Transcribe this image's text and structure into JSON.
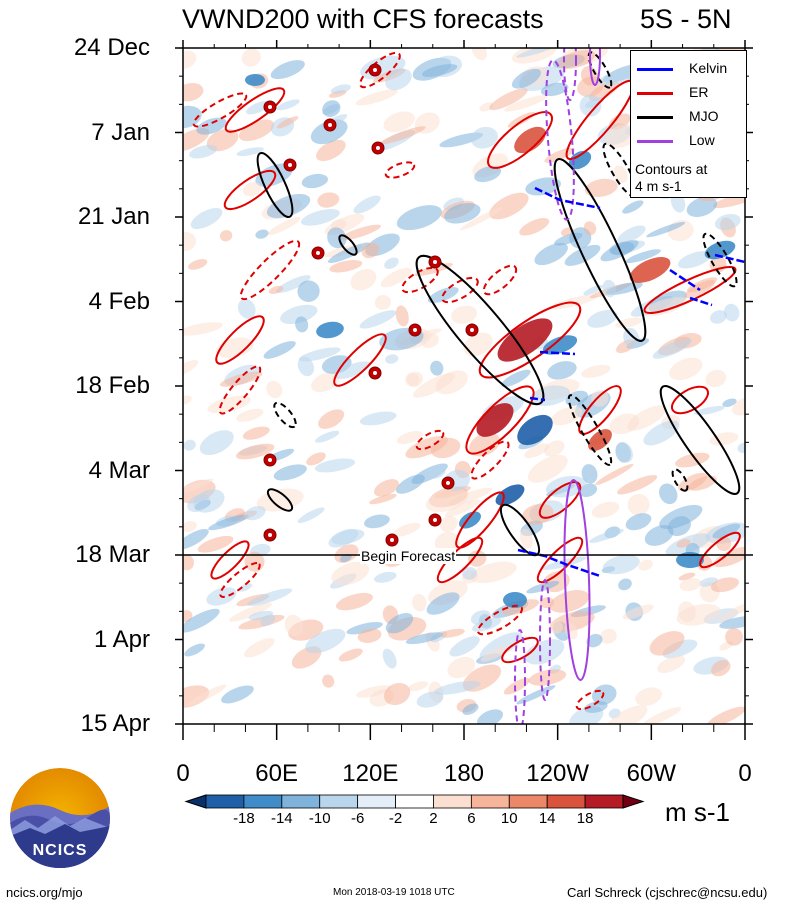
{
  "header": {
    "title": "VWND200 with CFS forecasts",
    "region": "5S - 5N"
  },
  "chart_data": {
    "type": "heatmap",
    "title": "VWND200 with CFS forecasts",
    "subtitle": "5S - 5N",
    "y_ticks": [
      "24 Dec",
      "7 Jan",
      "21 Jan",
      "4 Feb",
      "18 Feb",
      "4 Mar",
      "18 Mar",
      "1 Apr",
      "15 Apr"
    ],
    "x_ticks": [
      "0",
      "60E",
      "120E",
      "180",
      "120W",
      "60W",
      "0"
    ],
    "colorbar": {
      "levels": [
        -18,
        -14,
        -10,
        -6,
        -2,
        2,
        6,
        10,
        14,
        18
      ],
      "tick_labels": [
        "-18",
        "-14",
        "-10",
        "-6",
        "-2",
        "2",
        "6",
        "10",
        "14",
        "18"
      ],
      "units": "m s-1",
      "colors": [
        "#08306b",
        "#1f5fa8",
        "#3f8cc8",
        "#7fb3dc",
        "#b9d6ec",
        "#e3eef8",
        "#ffffff",
        "#fbe0d2",
        "#f6b49b",
        "#ec8768",
        "#d9533d",
        "#b51b24",
        "#730012"
      ]
    },
    "legend": {
      "placement": "top-right",
      "entries": [
        {
          "name": "Kelvin",
          "color": "#0000ff"
        },
        {
          "name": "ER",
          "color": "#e00000"
        },
        {
          "name": "MJO",
          "color": "#000000"
        },
        {
          "name": "Low",
          "color": "#a040e0"
        }
      ],
      "note_line1": "Contours at",
      "note_line2": "4 m s-1"
    },
    "annotation": "Begin Forecast",
    "begin_forecast_date": "18 Mar"
  },
  "footer": {
    "left": "ncics.org/mjo",
    "center": "Mon 2018-03-19 1018 UTC",
    "right": "Carl Schreck (cjschrec@ncsu.edu)",
    "logo_text": "NCICS"
  }
}
